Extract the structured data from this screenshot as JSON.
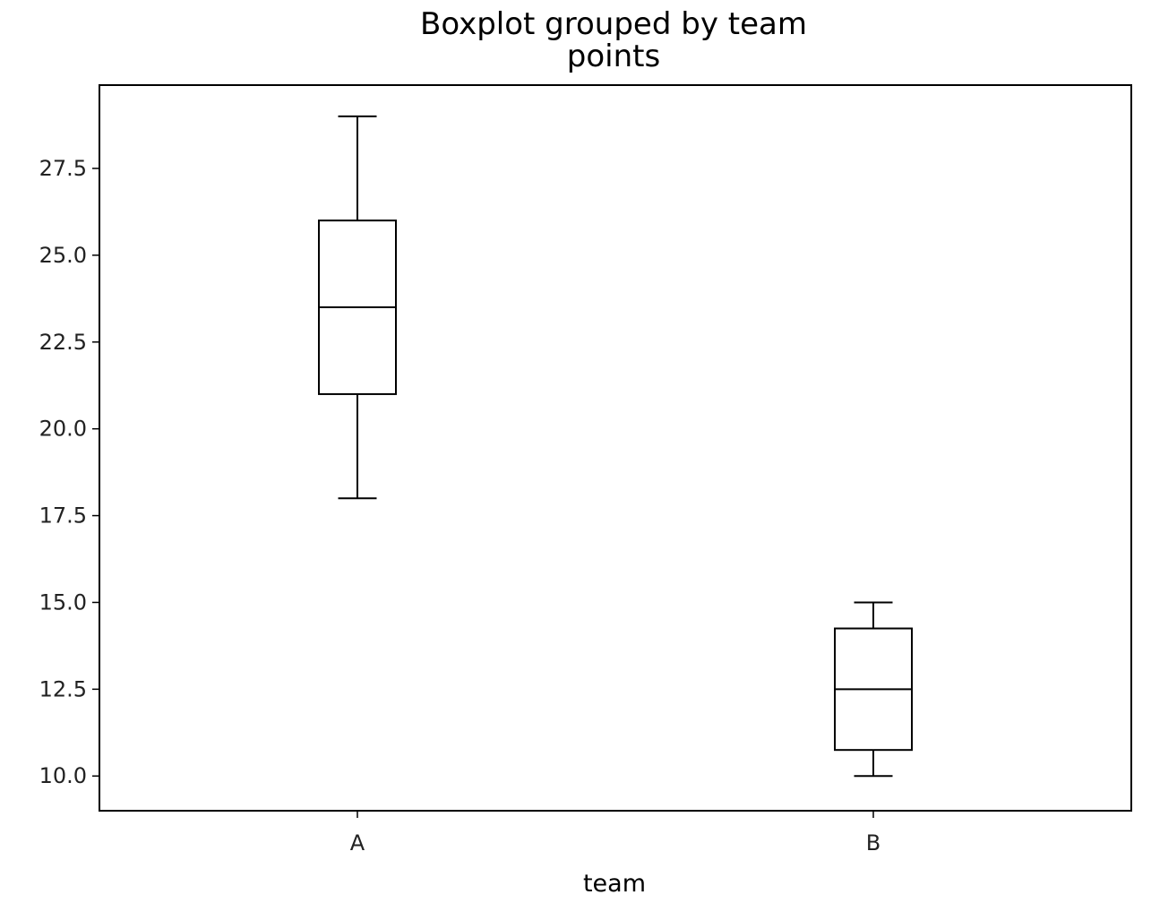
{
  "chart_data": {
    "type": "boxplot",
    "title": "Boxplot grouped by team",
    "subtitle": "points",
    "xlabel": "team",
    "ylabel": "",
    "categories": [
      "A",
      "B"
    ],
    "boxes": [
      {
        "category": "A",
        "whisker_low": 18.0,
        "q1": 21.0,
        "median": 23.5,
        "q3": 26.0,
        "whisker_high": 29.0
      },
      {
        "category": "B",
        "whisker_low": 10.0,
        "q1": 10.75,
        "median": 12.5,
        "q3": 14.25,
        "whisker_high": 15.0
      }
    ],
    "ylim": [
      9.0,
      29.9
    ],
    "yticks": [
      10.0,
      12.5,
      15.0,
      17.5,
      20.0,
      22.5,
      25.0,
      27.5
    ],
    "ytick_labels": [
      "10.0",
      "12.5",
      "15.0",
      "17.5",
      "20.0",
      "22.5",
      "25.0",
      "27.5"
    ],
    "grid": false,
    "colors": {
      "box": "#000000",
      "background": "#ffffff"
    }
  }
}
